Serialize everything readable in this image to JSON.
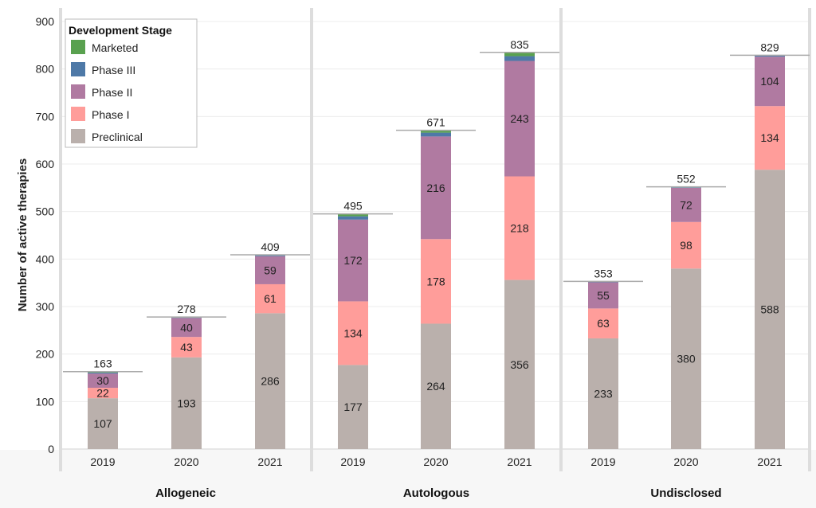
{
  "chart_data": {
    "type": "bar",
    "stacked": true,
    "ylabel": "Number of active therapies",
    "ylim": [
      0,
      900
    ],
    "yticks": [
      0,
      100,
      200,
      300,
      400,
      500,
      600,
      700,
      800,
      900
    ],
    "grid": true,
    "legend": {
      "title": "Development Stage",
      "placement": "top-left",
      "entries": [
        "Marketed",
        "Phase III",
        "Phase II",
        "Phase I",
        "Preclinical"
      ]
    },
    "stage_colors": {
      "Preclinical": "#bab0ac",
      "Phase I": "#ff9d9a",
      "Phase II": "#b07aa1",
      "Phase III": "#4e79a7",
      "Marketed": "#59a14f"
    },
    "stack_order": [
      "Preclinical",
      "Phase I",
      "Phase II",
      "Phase III",
      "Marketed"
    ],
    "labeled_stages": [
      "Preclinical",
      "Phase I",
      "Phase II"
    ],
    "panels": [
      {
        "name": "Allogeneic",
        "categories": [
          "2019",
          "2020",
          "2021"
        ],
        "totals": [
          163,
          278,
          409
        ],
        "series": {
          "Preclinical": [
            107,
            193,
            286
          ],
          "Phase I": [
            22,
            43,
            61
          ],
          "Phase II": [
            30,
            40,
            59
          ],
          "Phase III": [
            2,
            1,
            2
          ],
          "Marketed": [
            2,
            1,
            1
          ]
        }
      },
      {
        "name": "Autologous",
        "categories": [
          "2019",
          "2020",
          "2021"
        ],
        "totals": [
          495,
          671,
          835
        ],
        "series": {
          "Preclinical": [
            177,
            264,
            356
          ],
          "Phase I": [
            134,
            178,
            218
          ],
          "Phase II": [
            172,
            216,
            243
          ],
          "Phase III": [
            7,
            8,
            10
          ],
          "Marketed": [
            5,
            5,
            8
          ]
        }
      },
      {
        "name": "Undisclosed",
        "categories": [
          "2019",
          "2020",
          "2021"
        ],
        "totals": [
          353,
          552,
          829
        ],
        "series": {
          "Preclinical": [
            233,
            380,
            588
          ],
          "Phase I": [
            63,
            98,
            134
          ],
          "Phase II": [
            55,
            72,
            104
          ],
          "Phase III": [
            1,
            1,
            2
          ],
          "Marketed": [
            1,
            1,
            1
          ]
        }
      }
    ]
  }
}
